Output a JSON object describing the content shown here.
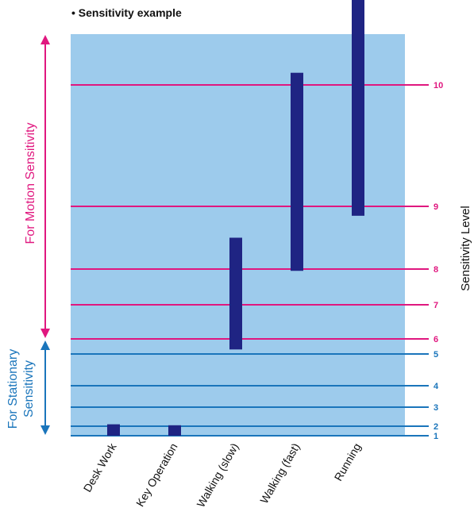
{
  "title": "• Sensitivity example",
  "chart_data": {
    "type": "bar",
    "subtype": "floating-range",
    "title": "• Sensitivity example",
    "categories": [
      "Desk Work",
      "Key Operation",
      "Walking (slow)",
      "Walking (fast)",
      "Running"
    ],
    "ranges": [
      {
        "category": "Desk Work",
        "low": 1,
        "high": 2.1
      },
      {
        "category": "Key Operation",
        "low": 1,
        "high": 2.05
      },
      {
        "category": "Walking (slow)",
        "low": 5.3,
        "high": 8.5
      },
      {
        "category": "Walking (fast)",
        "low": 7.95,
        "high": 10.1
      },
      {
        "category": "Running",
        "low": 8.85,
        "high": 10.9
      }
    ],
    "ylabel": "Sensitivity Level",
    "ylim": [
      1,
      11
    ],
    "levels": [
      {
        "label": "1",
        "group": "stationary"
      },
      {
        "label": "2",
        "group": "stationary"
      },
      {
        "label": "3",
        "group": "stationary"
      },
      {
        "label": "4",
        "group": "stationary"
      },
      {
        "label": "5",
        "group": "stationary"
      },
      {
        "label": "6",
        "group": "motion"
      },
      {
        "label": "7",
        "group": "motion"
      },
      {
        "label": "8",
        "group": "motion"
      },
      {
        "label": "9",
        "group": "motion"
      },
      {
        "label": "10",
        "group": "motion"
      }
    ],
    "annotations": {
      "motion": "For Motion Sensitivity",
      "stationary_line1": "For Stationary",
      "stationary_line2": "Sensitivity"
    },
    "colors": {
      "background": "#9dcbec",
      "bar": "#1f2483",
      "motion": "#e0177f",
      "stationary": "#1a75bb"
    }
  }
}
